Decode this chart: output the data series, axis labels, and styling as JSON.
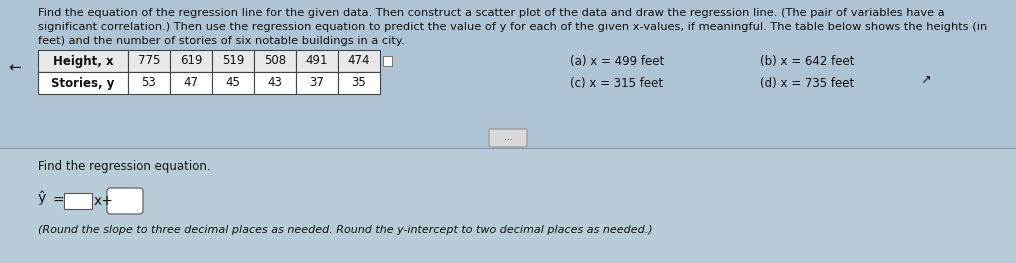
{
  "title_line1": "Find the equation of the regression line for the given data. Then construct a scatter plot of the data and draw the regression line. (The pair of variables have a",
  "title_line2": "significant correlation.) Then use the regression equation to predict the value of y for each of the given x-values, if meaningful. The table below shows the heights (in",
  "title_line3": "feet) and the number of stories of six notable buildings in a city.",
  "table_headers": [
    "Height, x",
    "775",
    "619",
    "519",
    "508",
    "491",
    "474"
  ],
  "table_row2": [
    "Stories, y",
    "53",
    "47",
    "45",
    "43",
    "37",
    "35"
  ],
  "label_a": "(a) x = 499 feet",
  "label_b": "(b) x = 642 feet",
  "label_c": "(c) x = 315 feet",
  "label_d": "(d) x = 735 feet",
  "dots_button": "...",
  "find_text": "Find the regression equation.",
  "round_note": "(Round the slope to three decimal places as needed. Round the y-intercept to two decimal places as needed.)",
  "bg_color": "#aec4d4",
  "lower_bg_color": "#aec4d4",
  "table_bg": "#ffffff",
  "header_bg": "#e8e8e8",
  "font_color": "#111111",
  "font_size_title": 8.2,
  "font_size_table": 8.5,
  "font_size_body": 8.5,
  "font_size_eq": 10
}
